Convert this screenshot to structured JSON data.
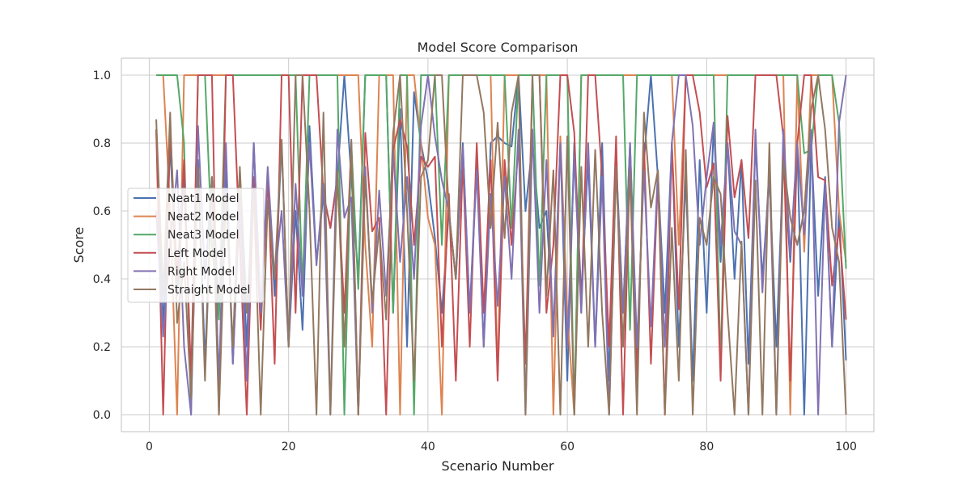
{
  "chart_data": {
    "type": "line",
    "title": "Model Score Comparison",
    "xlabel": "Scenario Number",
    "ylabel": "Score",
    "xlim": [
      -4,
      104
    ],
    "ylim": [
      -0.05,
      1.05
    ],
    "xticks": [
      0,
      20,
      40,
      60,
      80,
      100
    ],
    "yticks": [
      0.0,
      0.2,
      0.4,
      0.6,
      0.8,
      1.0
    ],
    "xtick_labels": [
      "0",
      "20",
      "40",
      "60",
      "80",
      "100"
    ],
    "ytick_labels": [
      "0.0",
      "0.2",
      "0.4",
      "0.6",
      "0.8",
      "1.0"
    ],
    "grid": true,
    "legend_position": "center-left",
    "x": [
      1,
      2,
      3,
      4,
      5,
      6,
      7,
      8,
      9,
      10,
      11,
      12,
      13,
      14,
      15,
      16,
      17,
      18,
      19,
      20,
      21,
      22,
      23,
      24,
      25,
      26,
      27,
      28,
      29,
      30,
      31,
      32,
      33,
      34,
      35,
      36,
      37,
      38,
      39,
      40,
      41,
      42,
      43,
      44,
      45,
      46,
      47,
      48,
      49,
      50,
      51,
      52,
      53,
      54,
      55,
      56,
      57,
      58,
      59,
      60,
      61,
      62,
      63,
      64,
      65,
      66,
      67,
      68,
      69,
      70,
      71,
      72,
      73,
      74,
      75,
      76,
      77,
      78,
      79,
      80,
      81,
      82,
      83,
      84,
      85,
      86,
      87,
      88,
      89,
      90,
      91,
      92,
      93,
      94,
      95,
      96,
      97,
      98,
      99,
      100
    ],
    "series": [
      {
        "name": "Neat1 Model",
        "color": "#4c72b0",
        "values": [
          0.84,
          0.25,
          0.8,
          0.35,
          0.7,
          0.1,
          0.75,
          0.15,
          0.7,
          0.3,
          0.72,
          0.15,
          0.65,
          0.2,
          0.8,
          0.3,
          0.7,
          0.35,
          0.8,
          0.2,
          0.6,
          0.25,
          0.85,
          0.45,
          0.65,
          0.55,
          0.7,
          1.0,
          0.7,
          0.4,
          1.0,
          1.0,
          1.0,
          1.0,
          0.3,
          0.9,
          0.2,
          0.95,
          0.8,
          0.69,
          0.52,
          0.3,
          0.6,
          0.4,
          0.8,
          0.3,
          0.75,
          0.2,
          0.8,
          0.82,
          0.8,
          0.79,
          1.0,
          0.6,
          0.8,
          0.55,
          0.6,
          0.25,
          0.8,
          0.1,
          0.8,
          0.35,
          0.75,
          0.2,
          0.8,
          0.1,
          0.75,
          0.3,
          0.8,
          0.15,
          0.75,
          1.0,
          0.7,
          0.3,
          0.8,
          0.2,
          0.7,
          0.1,
          0.75,
          0.3,
          0.85,
          0.45,
          0.8,
          0.4,
          0.75,
          0.15,
          0.8,
          0.4,
          0.7,
          0.2,
          0.75,
          0.45,
          0.8,
          0.0,
          0.8,
          0.35,
          0.7,
          0.2,
          0.6,
          0.16
        ]
      },
      {
        "name": "Neat2 Model",
        "color": "#dd8452",
        "values": [
          1.0,
          1.0,
          0.6,
          0.0,
          1.0,
          1.0,
          1.0,
          1.0,
          1.0,
          1.0,
          1.0,
          1.0,
          1.0,
          1.0,
          1.0,
          1.0,
          1.0,
          1.0,
          1.0,
          1.0,
          1.0,
          1.0,
          1.0,
          1.0,
          1.0,
          1.0,
          1.0,
          1.0,
          1.0,
          1.0,
          0.5,
          0.2,
          1.0,
          1.0,
          1.0,
          0.0,
          1.0,
          1.0,
          0.8,
          0.58,
          0.5,
          0.0,
          1.0,
          1.0,
          1.0,
          1.0,
          1.0,
          1.0,
          1.0,
          0.11,
          1.0,
          1.0,
          1.0,
          1.0,
          1.0,
          1.0,
          1.0,
          0.0,
          0.82,
          0.3,
          0.0,
          1.0,
          1.0,
          1.0,
          1.0,
          1.0,
          1.0,
          1.0,
          1.0,
          1.0,
          1.0,
          1.0,
          1.0,
          1.0,
          1.0,
          0.5,
          1.0,
          1.0,
          1.0,
          1.0,
          1.0,
          1.0,
          1.0,
          1.0,
          1.0,
          1.0,
          1.0,
          1.0,
          1.0,
          1.0,
          1.0,
          0.0,
          1.0,
          0.48,
          1.0,
          1.0,
          1.0,
          1.0,
          0.6,
          0.45
        ]
      },
      {
        "name": "Neat3 Model",
        "color": "#55a868",
        "values": [
          1.0,
          1.0,
          1.0,
          1.0,
          0.8,
          0.0,
          1.0,
          1.0,
          0.5,
          0.28,
          1.0,
          1.0,
          1.0,
          1.0,
          1.0,
          1.0,
          1.0,
          1.0,
          1.0,
          1.0,
          1.0,
          0.37,
          1.0,
          1.0,
          1.0,
          1.0,
          1.0,
          0.0,
          0.8,
          0.37,
          1.0,
          1.0,
          1.0,
          1.0,
          0.3,
          1.0,
          1.0,
          0.0,
          1.0,
          1.0,
          1.0,
          0.5,
          1.0,
          1.0,
          1.0,
          1.0,
          1.0,
          1.0,
          1.0,
          1.0,
          1.0,
          0.55,
          1.0,
          1.0,
          1.0,
          0.38,
          1.0,
          1.0,
          1.0,
          1.0,
          0.0,
          1.0,
          1.0,
          1.0,
          1.0,
          1.0,
          1.0,
          1.0,
          0.25,
          1.0,
          1.0,
          1.0,
          1.0,
          1.0,
          1.0,
          1.0,
          1.0,
          1.0,
          1.0,
          1.0,
          1.0,
          0.14,
          1.0,
          1.0,
          1.0,
          1.0,
          1.0,
          1.0,
          1.0,
          1.0,
          1.0,
          1.0,
          1.0,
          0.77,
          0.78,
          1.0,
          1.0,
          1.0,
          0.86,
          0.43
        ]
      },
      {
        "name": "Left Model",
        "color": "#c44e52",
        "values": [
          0.84,
          0.0,
          0.85,
          0.4,
          0.75,
          0.1,
          1.0,
          1.0,
          1.0,
          0.0,
          1.0,
          1.0,
          0.5,
          0.0,
          0.7,
          0.25,
          0.7,
          0.15,
          1.0,
          1.0,
          0.3,
          1.0,
          1.0,
          1.0,
          0.65,
          0.55,
          0.7,
          0.3,
          0.8,
          0.0,
          0.83,
          0.54,
          0.58,
          0.0,
          0.78,
          0.87,
          0.79,
          0.5,
          0.76,
          0.73,
          0.76,
          0.2,
          0.65,
          0.1,
          0.75,
          0.2,
          0.8,
          0.3,
          0.75,
          0.1,
          0.75,
          0.5,
          0.8,
          0.15,
          1.0,
          1.0,
          0.3,
          0.5,
          1.0,
          1.0,
          0.83,
          0.3,
          1.0,
          1.0,
          0.7,
          0.2,
          0.82,
          0.0,
          0.75,
          0.1,
          0.8,
          0.15,
          0.7,
          0.0,
          0.8,
          0.31,
          1.0,
          1.0,
          0.89,
          0.67,
          0.74,
          0.1,
          0.88,
          0.64,
          0.75,
          0.52,
          1.0,
          1.0,
          1.0,
          1.0,
          0.82,
          0.1,
          0.8,
          1.0,
          1.0,
          0.7,
          0.69,
          0.38,
          0.55,
          0.28
        ]
      },
      {
        "name": "Right Model",
        "color": "#8172b3",
        "values": [
          0.6,
          0.23,
          0.5,
          0.72,
          0.2,
          0.0,
          0.85,
          0.4,
          0.7,
          0.1,
          0.8,
          0.15,
          0.63,
          0.1,
          0.8,
          0.3,
          0.73,
          0.4,
          0.6,
          0.2,
          0.68,
          0.35,
          0.8,
          0.44,
          0.68,
          0.0,
          0.84,
          0.58,
          0.64,
          0.0,
          0.73,
          0.3,
          0.66,
          0.35,
          0.78,
          0.45,
          0.7,
          0.4,
          0.85,
          1.0,
          0.82,
          0.69,
          0.6,
          0.4,
          0.79,
          0.3,
          0.72,
          0.2,
          0.65,
          0.32,
          0.7,
          0.4,
          0.84,
          0.0,
          0.84,
          0.3,
          0.75,
          0.23,
          0.8,
          0.2,
          0.76,
          0.3,
          0.8,
          0.2,
          0.7,
          0.0,
          0.73,
          0.3,
          0.8,
          0.2,
          0.72,
          0.26,
          0.72,
          0.2,
          0.8,
          1.0,
          1.0,
          0.85,
          0.5,
          0.7,
          0.86,
          0.5,
          0.8,
          0.54,
          0.5,
          0.0,
          0.84,
          0.36,
          0.73,
          0.0,
          0.84,
          0.47,
          0.8,
          0.53,
          0.84,
          0.0,
          0.68,
          0.2,
          0.86,
          1.0
        ]
      },
      {
        "name": "Straight Model",
        "color": "#937860",
        "values": [
          0.87,
          0.35,
          0.89,
          0.27,
          0.45,
          0.05,
          0.73,
          0.1,
          0.7,
          0.0,
          0.65,
          0.2,
          0.73,
          0.3,
          0.66,
          0.0,
          0.63,
          0.4,
          0.81,
          0.2,
          1.0,
          1.0,
          0.6,
          0.0,
          0.89,
          0.0,
          0.72,
          0.2,
          0.81,
          0.0,
          0.7,
          0.33,
          0.55,
          0.28,
          0.83,
          1.0,
          0.6,
          0.1,
          0.7,
          0.75,
          1.0,
          1.0,
          0.6,
          0.4,
          1.0,
          1.0,
          1.0,
          0.89,
          0.55,
          0.86,
          0.52,
          0.89,
          1.0,
          0.0,
          1.0,
          1.0,
          0.35,
          0.72,
          0.0,
          0.82,
          0.0,
          0.73,
          0.2,
          0.78,
          0.3,
          0.0,
          0.73,
          0.2,
          0.72,
          0.0,
          0.89,
          0.61,
          0.72,
          0.0,
          0.55,
          0.1,
          0.78,
          0.0,
          0.58,
          0.5,
          0.7,
          0.65,
          0.3,
          0.0,
          0.51,
          0.0,
          0.69,
          0.0,
          0.8,
          0.0,
          0.75,
          0.58,
          0.5,
          0.6,
          0.9,
          1.0,
          0.84,
          0.55,
          0.45,
          0.0
        ]
      }
    ]
  }
}
